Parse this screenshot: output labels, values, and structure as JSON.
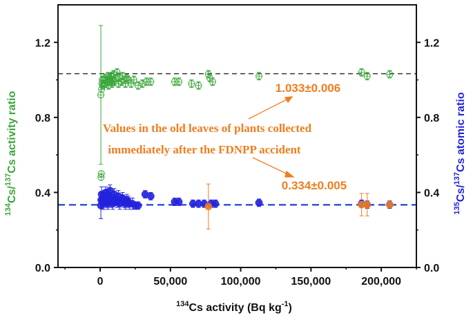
{
  "chart_data": {
    "type": "scatter",
    "xlabel": {
      "sup": "134",
      "text": "Cs activity (Bq kg",
      "sup2": "-1",
      "end": ")"
    },
    "ylabel_left": {
      "sup1": "134",
      "mid": "Cs/",
      "sup2": "137",
      "text": "Cs activity ratio"
    },
    "ylabel_right": {
      "sup1": "135",
      "mid": "Cs/",
      "sup2": "137",
      "text": "Cs atomic ratio"
    },
    "xlim": [
      -30000,
      225000
    ],
    "ylim": [
      0.0,
      1.4
    ],
    "x_ticks": [
      0,
      50000,
      100000,
      150000,
      200000
    ],
    "x_tick_labels": [
      "0",
      "50,000",
      "100,000",
      "150,000",
      "200,000"
    ],
    "y_ticks": [
      0.0,
      0.4,
      0.8,
      1.2
    ],
    "y_tick_labels": [
      "0.0",
      "0.4",
      "0.8",
      "1.2"
    ],
    "y_right_tick_labels": [
      "0.0",
      "0.4",
      "0.8",
      "1.2"
    ],
    "reference_lines": [
      {
        "y": 1.033,
        "color": "#333333",
        "style": "dashed"
      },
      {
        "y": 0.334,
        "color": "#1f3fd6",
        "style": "dashed"
      }
    ],
    "annotations": {
      "line1": "Values in the old leaves of plants collected",
      "line2": "immediately after the FDNPP accident",
      "activity_value": "1.033±0.006",
      "atomic_value": "0.334±0.005"
    },
    "colors": {
      "activity": "#3aa63a",
      "atomic": "#2222dd",
      "old_leaves": "#f07d1e",
      "axis": "#111111"
    },
    "series": [
      {
        "name": "activity",
        "marker": "open-circle-cross",
        "points": [
          [
            500,
            0.92,
            0.37
          ],
          [
            600,
            0.48,
            0
          ],
          [
            800,
            0.5,
            0
          ],
          [
            1000,
            0.95,
            0
          ],
          [
            1200,
            0.98,
            0.02
          ],
          [
            1500,
            1.0,
            0.02
          ],
          [
            2000,
            0.97,
            0.02
          ],
          [
            2500,
            1.0,
            0.02
          ],
          [
            3000,
            0.98,
            0.02
          ],
          [
            3500,
            1.01,
            0.02
          ],
          [
            4000,
            0.98,
            0.02
          ],
          [
            4500,
            1.0,
            0.02
          ],
          [
            5000,
            0.99,
            0.02
          ],
          [
            5500,
            1.02,
            0.02
          ],
          [
            6000,
            0.97,
            0.02
          ],
          [
            6500,
            1.0,
            0.02
          ],
          [
            7000,
            1.01,
            0.02
          ],
          [
            7500,
            0.99,
            0.02
          ],
          [
            8000,
            1.02,
            0.02
          ],
          [
            8500,
            0.98,
            0.02
          ],
          [
            9000,
            1.0,
            0.02
          ],
          [
            9500,
            1.03,
            0.02
          ],
          [
            10000,
            0.99,
            0.02
          ],
          [
            11000,
            1.01,
            0.02
          ],
          [
            12000,
            1.04,
            0.02
          ],
          [
            13000,
            0.98,
            0.02
          ],
          [
            14000,
            1.01,
            0.02
          ],
          [
            15000,
            0.99,
            0.02
          ],
          [
            16000,
            1.02,
            0.02
          ],
          [
            17000,
            1.0,
            0.02
          ],
          [
            18000,
            0.98,
            0.02
          ],
          [
            19000,
            1.01,
            0.02
          ],
          [
            20000,
            1.0,
            0.02
          ],
          [
            22000,
            0.98,
            0.02
          ],
          [
            24000,
            1.0,
            0.02
          ],
          [
            27000,
            0.97,
            0.02
          ],
          [
            30000,
            0.98,
            0.02
          ],
          [
            33000,
            0.99,
            0.02
          ],
          [
            36000,
            0.99,
            0.02
          ],
          [
            53000,
            0.99,
            0.02
          ],
          [
            56000,
            0.99,
            0.02
          ],
          [
            65000,
            0.98,
            0.02
          ],
          [
            70000,
            0.97,
            0.02
          ],
          [
            77000,
            1.03,
            0.02
          ],
          [
            78000,
            1.01,
            0.02
          ],
          [
            80000,
            0.99,
            0.02
          ],
          [
            113000,
            1.02,
            0.02
          ],
          [
            186000,
            1.04,
            0.02
          ],
          [
            190000,
            1.02,
            0.02
          ],
          [
            206000,
            1.03,
            0.02
          ]
        ]
      },
      {
        "name": "atomic",
        "marker": "filled-circle",
        "points": [
          [
            500,
            0.33,
            0.07
          ],
          [
            700,
            0.36,
            0.04
          ],
          [
            1000,
            0.39,
            0.04
          ],
          [
            1500,
            0.35,
            0.04
          ],
          [
            2000,
            0.37,
            0.03
          ],
          [
            2500,
            0.34,
            0.03
          ],
          [
            3000,
            0.38,
            0.03
          ],
          [
            3500,
            0.36,
            0.03
          ],
          [
            4000,
            0.4,
            0.03
          ],
          [
            4500,
            0.35,
            0.03
          ],
          [
            5000,
            0.37,
            0.03
          ],
          [
            5500,
            0.34,
            0.03
          ],
          [
            6000,
            0.38,
            0.03
          ],
          [
            6500,
            0.36,
            0.03
          ],
          [
            7000,
            0.41,
            0.03
          ],
          [
            7500,
            0.35,
            0.03
          ],
          [
            8000,
            0.37,
            0.03
          ],
          [
            9000,
            0.34,
            0.03
          ],
          [
            10000,
            0.39,
            0.03
          ],
          [
            11000,
            0.36,
            0.03
          ],
          [
            12000,
            0.35,
            0.03
          ],
          [
            13000,
            0.38,
            0.03
          ],
          [
            14000,
            0.34,
            0.03
          ],
          [
            15000,
            0.36,
            0.03
          ],
          [
            16000,
            0.37,
            0.03
          ],
          [
            17000,
            0.35,
            0.03
          ],
          [
            18000,
            0.34,
            0.03
          ],
          [
            19000,
            0.36,
            0.03
          ],
          [
            20000,
            0.35,
            0.03
          ],
          [
            21000,
            0.34,
            0.03
          ],
          [
            23000,
            0.34,
            0.03
          ],
          [
            25000,
            0.33,
            0.02
          ],
          [
            27000,
            0.33,
            0.02
          ],
          [
            32000,
            0.39,
            0.02
          ],
          [
            36000,
            0.38,
            0.02
          ],
          [
            53000,
            0.35,
            0.02
          ],
          [
            56000,
            0.35,
            0.02
          ],
          [
            66000,
            0.34,
            0.02
          ],
          [
            70000,
            0.34,
            0.02
          ],
          [
            74000,
            0.34,
            0.02
          ],
          [
            79000,
            0.34,
            0.02
          ],
          [
            82000,
            0.34,
            0.02
          ],
          [
            113000,
            0.345,
            0.02
          ],
          [
            186000,
            0.34,
            0.02
          ],
          [
            190000,
            0.335,
            0.02
          ],
          [
            206000,
            0.335,
            0.02
          ]
        ]
      },
      {
        "name": "old_leaves",
        "marker": "filled-circle",
        "points": [
          [
            77000,
            0.325,
            0.12
          ],
          [
            186000,
            0.335,
            0.06
          ],
          [
            190000,
            0.335,
            0.06
          ],
          [
            206000,
            0.335,
            0.015
          ]
        ]
      }
    ]
  }
}
